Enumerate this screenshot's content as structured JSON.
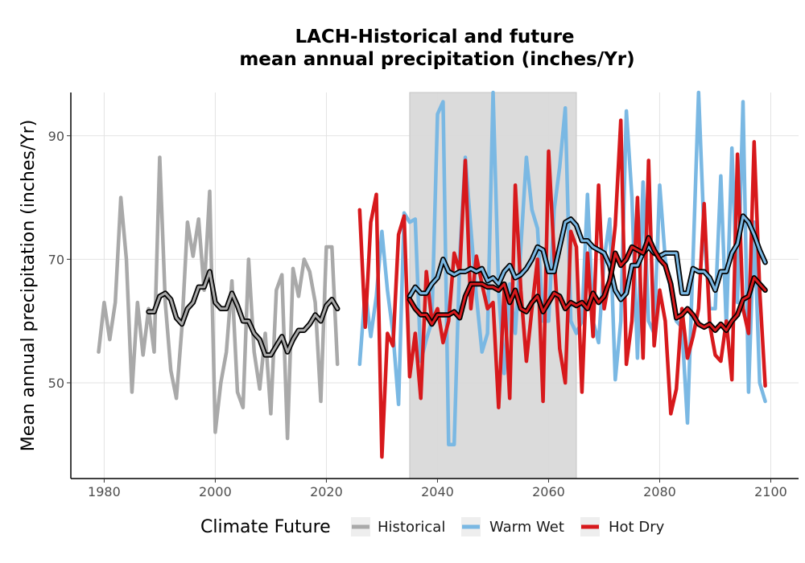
{
  "chart_data": {
    "type": "line",
    "title_line1": "LACH-Historical and future",
    "title_line2": "mean annual precipitation (inches/Yr)",
    "xlabel": "",
    "ylabel": "Mean annual precipitation (inches/Yr)",
    "xlim": [
      1974,
      2105
    ],
    "ylim": [
      34.5,
      97
    ],
    "x_ticks": [
      1980,
      2000,
      2020,
      2040,
      2060,
      2080,
      2100
    ],
    "y_ticks": [
      50,
      70,
      90
    ],
    "grid": true,
    "shaded_period": {
      "x_start": 2035,
      "x_end": 2065,
      "y_top": 100
    },
    "legend": {
      "title": "Climate Future",
      "position": "bottom",
      "items": [
        {
          "label": "Historical",
          "color": "#a9a9a9"
        },
        {
          "label": "Warm Wet",
          "color": "#7ab8e3"
        },
        {
          "label": "Hot Dry",
          "color": "#d7191c"
        }
      ]
    },
    "series": [
      {
        "name": "Historical",
        "color": "#a9a9a9",
        "x": [
          1979,
          1980,
          1981,
          1982,
          1983,
          1984,
          1985,
          1986,
          1987,
          1988,
          1989,
          1990,
          1991,
          1992,
          1993,
          1994,
          1995,
          1996,
          1997,
          1998,
          1999,
          2000,
          2001,
          2002,
          2003,
          2004,
          2005,
          2006,
          2007,
          2008,
          2009,
          2010,
          2011,
          2012,
          2013,
          2014,
          2015,
          2016,
          2017,
          2018,
          2019,
          2020,
          2021,
          2022
        ],
        "values": [
          55,
          63,
          57,
          63,
          80,
          70,
          48.5,
          63,
          54.5,
          62,
          55,
          86.5,
          63,
          52,
          47.5,
          59,
          76,
          70.5,
          76.5,
          65,
          81,
          42,
          50,
          55,
          66.5,
          48.5,
          46,
          70,
          55,
          49,
          58,
          45,
          65,
          67.5,
          41,
          68.5,
          64,
          70,
          68,
          63,
          47,
          72,
          72,
          53
        ]
      },
      {
        "name": "Historical smooth",
        "color": "#000000",
        "x": [
          1988,
          1989,
          1990,
          1991,
          1992,
          1993,
          1994,
          1995,
          1996,
          1997,
          1998,
          1999,
          2000,
          2001,
          2002,
          2003,
          2004,
          2005,
          2006,
          2007,
          2008,
          2009,
          2010,
          2011,
          2012,
          2013,
          2014,
          2015,
          2016,
          2017,
          2018,
          2019,
          2020,
          2021,
          2022
        ],
        "values": [
          61.5,
          61.5,
          64,
          64.5,
          63.5,
          60.5,
          59.5,
          62,
          63,
          65.5,
          65.5,
          68,
          63,
          62,
          62,
          64.5,
          62.5,
          60,
          60,
          58,
          57,
          54.5,
          54.5,
          56,
          57.5,
          55,
          57,
          58.5,
          58.5,
          59.5,
          61,
          60,
          62.5,
          63.5,
          62
        ]
      },
      {
        "name": "Warm Wet",
        "color": "#7ab8e3",
        "x": [
          2026,
          2027,
          2028,
          2029,
          2030,
          2031,
          2032,
          2033,
          2034,
          2035,
          2036,
          2037,
          2038,
          2039,
          2040,
          2041,
          2042,
          2043,
          2044,
          2045,
          2046,
          2047,
          2048,
          2049,
          2050,
          2051,
          2052,
          2053,
          2054,
          2055,
          2056,
          2057,
          2058,
          2059,
          2060,
          2061,
          2062,
          2063,
          2064,
          2065,
          2066,
          2067,
          2068,
          2069,
          2070,
          2071,
          2072,
          2073,
          2074,
          2075,
          2076,
          2077,
          2078,
          2079,
          2080,
          2081,
          2082,
          2083,
          2084,
          2085,
          2086,
          2087,
          2088,
          2089,
          2090,
          2091,
          2092,
          2093,
          2094,
          2095,
          2096,
          2097,
          2098,
          2099
        ],
        "values": [
          53,
          65,
          57.5,
          64,
          74.5,
          65,
          58,
          46.5,
          77.5,
          76,
          76.5,
          53.5,
          57,
          60,
          93.5,
          95.5,
          40,
          40,
          70.5,
          86.5,
          75,
          64,
          55,
          58,
          97,
          65,
          51.5,
          66,
          58,
          72,
          86.5,
          78,
          75,
          60,
          60,
          78,
          85,
          94.5,
          60,
          58,
          60,
          80.5,
          60,
          56.5,
          70,
          76.5,
          50.5,
          60,
          94,
          80,
          54,
          82.5,
          60,
          58,
          82,
          70,
          65,
          60,
          59,
          43.5,
          70,
          100,
          74,
          62,
          62,
          83.5,
          59,
          88,
          63,
          95.5,
          48.5,
          76,
          50,
          47
        ]
      },
      {
        "name": "Warm Wet smooth",
        "color": "#000000",
        "x": [
          2035,
          2036,
          2037,
          2038,
          2039,
          2040,
          2041,
          2042,
          2043,
          2044,
          2045,
          2046,
          2047,
          2048,
          2049,
          2050,
          2051,
          2052,
          2053,
          2054,
          2055,
          2056,
          2057,
          2058,
          2059,
          2060,
          2061,
          2062,
          2063,
          2064,
          2065,
          2066,
          2067,
          2068,
          2069,
          2070,
          2071,
          2072,
          2073,
          2074,
          2075,
          2076,
          2077,
          2078,
          2079,
          2080,
          2081,
          2082,
          2083,
          2084,
          2085,
          2086,
          2087,
          2088,
          2089,
          2090,
          2091,
          2092,
          2093,
          2094,
          2095,
          2096,
          2097,
          2098,
          2099
        ],
        "values": [
          64,
          65.5,
          64.5,
          64.5,
          66,
          67,
          70,
          68,
          67.5,
          68,
          68,
          68.5,
          68,
          68.5,
          66.5,
          67,
          66,
          68,
          69,
          67,
          67.5,
          68.5,
          70,
          72,
          71.5,
          68,
          68,
          72,
          76,
          76.5,
          75.5,
          73,
          73,
          72,
          71.5,
          71,
          69,
          65,
          63.5,
          64.5,
          69,
          69,
          71,
          72,
          71,
          70.5,
          71,
          71,
          71,
          64.5,
          64.5,
          68.5,
          68,
          68,
          67,
          65,
          68,
          68,
          71,
          72.5,
          77,
          76,
          74,
          71.5,
          69.5
        ]
      },
      {
        "name": "Hot Dry",
        "color": "#d7191c",
        "x": [
          2026,
          2027,
          2028,
          2029,
          2030,
          2031,
          2032,
          2033,
          2034,
          2035,
          2036,
          2037,
          2038,
          2039,
          2040,
          2041,
          2042,
          2043,
          2044,
          2045,
          2046,
          2047,
          2048,
          2049,
          2050,
          2051,
          2052,
          2053,
          2054,
          2055,
          2056,
          2057,
          2058,
          2059,
          2060,
          2061,
          2062,
          2063,
          2064,
          2065,
          2066,
          2067,
          2068,
          2069,
          2070,
          2071,
          2072,
          2073,
          2074,
          2075,
          2076,
          2077,
          2078,
          2079,
          2080,
          2081,
          2082,
          2083,
          2084,
          2085,
          2086,
          2087,
          2088,
          2089,
          2090,
          2091,
          2092,
          2093,
          2094,
          2095,
          2096,
          2097,
          2098,
          2099
        ],
        "values": [
          78,
          59,
          76,
          80.5,
          38,
          58,
          56,
          74,
          77,
          51,
          58,
          47.5,
          68,
          60,
          62,
          56.5,
          60,
          71,
          68,
          86,
          62,
          70.5,
          66,
          62,
          63,
          46,
          65,
          47.5,
          82,
          65,
          53.5,
          62,
          70,
          47,
          87.5,
          70.5,
          55.5,
          50,
          74.5,
          72,
          48.5,
          71,
          57.5,
          82,
          62,
          67,
          75.5,
          92.5,
          53,
          60,
          80,
          54,
          86,
          56,
          65,
          60,
          45,
          49,
          62,
          54,
          57.5,
          62,
          79,
          59.5,
          54.5,
          53.5,
          60,
          50.5,
          87,
          62,
          58,
          89,
          65,
          49.5
        ]
      },
      {
        "name": "Hot Dry smooth",
        "color": "#000000",
        "x": [
          2035,
          2036,
          2037,
          2038,
          2039,
          2040,
          2041,
          2042,
          2043,
          2044,
          2045,
          2046,
          2047,
          2048,
          2049,
          2050,
          2051,
          2052,
          2053,
          2054,
          2055,
          2056,
          2057,
          2058,
          2059,
          2060,
          2061,
          2062,
          2063,
          2064,
          2065,
          2066,
          2067,
          2068,
          2069,
          2070,
          2071,
          2072,
          2073,
          2074,
          2075,
          2076,
          2077,
          2078,
          2079,
          2080,
          2081,
          2082,
          2083,
          2084,
          2085,
          2086,
          2087,
          2088,
          2089,
          2090,
          2091,
          2092,
          2093,
          2094,
          2095,
          2096,
          2097,
          2098,
          2099
        ],
        "values": [
          63.5,
          62,
          61,
          61,
          59.5,
          61,
          61,
          61,
          61.5,
          60.5,
          64,
          66,
          66,
          66,
          65.5,
          65.5,
          65,
          66,
          63,
          65,
          62,
          61.5,
          63,
          64,
          61.5,
          63,
          64.5,
          64,
          62,
          63,
          62.5,
          63,
          62,
          64.5,
          63,
          64,
          66.5,
          71,
          69,
          70,
          72,
          71.5,
          71,
          73.5,
          71.5,
          70,
          69,
          66,
          60.5,
          61,
          62,
          61,
          59.5,
          59,
          59.5,
          58.5,
          59.5,
          58.5,
          60,
          61,
          63.5,
          64,
          67,
          66,
          65
        ]
      }
    ]
  }
}
